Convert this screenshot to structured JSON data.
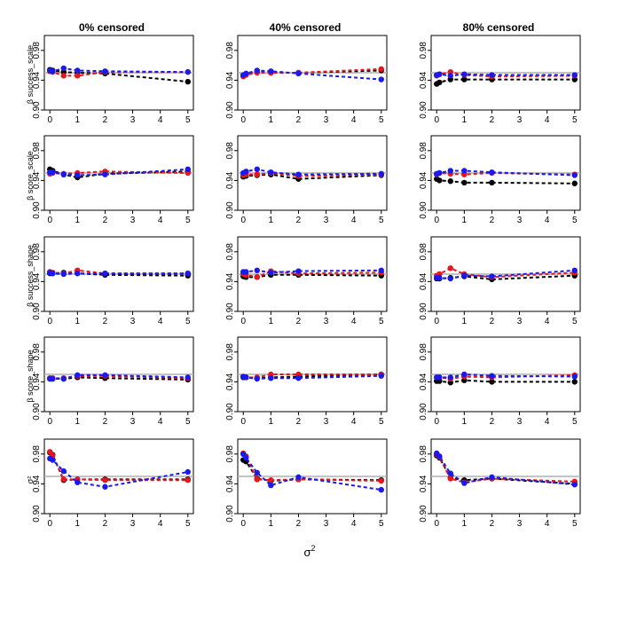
{
  "figure": {
    "column_titles": [
      "0% censored",
      "40% censored",
      "80% censored"
    ],
    "row_labels": [
      "β success_scale",
      "β score_scale",
      "β success_shape",
      "β score_shape",
      "σ²"
    ],
    "xlabel_base": "σ",
    "xlabel_sup": "2"
  },
  "chart_data": {
    "type": "line",
    "layout": "5x3 small multiples",
    "x": [
      0,
      0.1,
      0.5,
      1,
      2,
      5
    ],
    "xticks": [
      0,
      1,
      2,
      3,
      4,
      5
    ],
    "xlim": [
      -0.2,
      5.2
    ],
    "ylim": [
      0.9,
      1.0
    ],
    "yticks": [
      0.9,
      0.94,
      0.98
    ],
    "ytick_labels": [
      "0.90",
      "0.94",
      "0.98"
    ],
    "reference_line": 0.95,
    "reference_color": "#b0b0b0",
    "series_styles": [
      {
        "name": "black",
        "color": "#000000"
      },
      {
        "name": "red",
        "color": "#e8141e"
      },
      {
        "name": "blue",
        "color": "#1a1aee"
      }
    ],
    "panels": [
      {
        "row": "β success_scale",
        "column": "0% censored",
        "series": [
          {
            "name": "black",
            "values": [
              0.954,
              0.953,
              0.951,
              0.95,
              0.949,
              0.938
            ]
          },
          {
            "name": "red",
            "values": [
              0.952,
              0.951,
              0.946,
              0.946,
              0.951,
              0.951
            ]
          },
          {
            "name": "blue",
            "values": [
              0.953,
              0.952,
              0.956,
              0.953,
              0.952,
              0.951
            ]
          }
        ]
      },
      {
        "row": "β success_scale",
        "column": "40% censored",
        "series": [
          {
            "name": "black",
            "values": [
              0.946,
              0.948,
              0.951,
              0.95,
              0.95,
              0.953
            ]
          },
          {
            "name": "red",
            "values": [
              0.945,
              0.947,
              0.95,
              0.95,
              0.95,
              0.955
            ]
          },
          {
            "name": "blue",
            "values": [
              0.947,
              0.949,
              0.953,
              0.952,
              0.949,
              0.941
            ]
          }
        ]
      },
      {
        "row": "β success_scale",
        "column": "80% censored",
        "series": [
          {
            "name": "black",
            "values": [
              0.935,
              0.937,
              0.941,
              0.941,
              0.941,
              0.941
            ]
          },
          {
            "name": "red",
            "values": [
              0.946,
              0.948,
              0.951,
              0.947,
              0.945,
              0.946
            ]
          },
          {
            "name": "blue",
            "values": [
              0.947,
              0.948,
              0.946,
              0.948,
              0.947,
              0.947
            ]
          }
        ]
      },
      {
        "row": "β score_scale",
        "column": "0% censored",
        "series": [
          {
            "name": "black",
            "values": [
              0.955,
              0.953,
              0.948,
              0.944,
              0.949,
              0.952
            ]
          },
          {
            "name": "red",
            "values": [
              0.949,
              0.95,
              0.949,
              0.95,
              0.952,
              0.95
            ]
          },
          {
            "name": "blue",
            "values": [
              0.951,
              0.951,
              0.948,
              0.947,
              0.948,
              0.955
            ]
          }
        ]
      },
      {
        "row": "β score_scale",
        "column": "40% censored",
        "series": [
          {
            "name": "black",
            "values": [
              0.945,
              0.946,
              0.947,
              0.948,
              0.942,
              0.947
            ]
          },
          {
            "name": "red",
            "values": [
              0.947,
              0.948,
              0.948,
              0.95,
              0.946,
              0.948
            ]
          },
          {
            "name": "blue",
            "values": [
              0.95,
              0.952,
              0.955,
              0.951,
              0.948,
              0.949
            ]
          }
        ]
      },
      {
        "row": "β score_scale",
        "column": "80% censored",
        "series": [
          {
            "name": "black",
            "values": [
              0.942,
              0.94,
              0.939,
              0.937,
              0.937,
              0.936
            ]
          },
          {
            "name": "red",
            "values": [
              0.948,
              0.95,
              0.949,
              0.948,
              0.95,
              0.948
            ]
          },
          {
            "name": "blue",
            "values": [
              0.949,
              0.95,
              0.953,
              0.953,
              0.951,
              0.947
            ]
          }
        ]
      },
      {
        "row": "β success_shape",
        "column": "0% censored",
        "series": [
          {
            "name": "black",
            "values": [
              0.951,
              0.951,
              0.952,
              0.951,
              0.949,
              0.948
            ]
          },
          {
            "name": "red",
            "values": [
              0.953,
              0.952,
              0.951,
              0.955,
              0.951,
              0.951
            ]
          },
          {
            "name": "blue",
            "values": [
              0.952,
              0.951,
              0.95,
              0.951,
              0.951,
              0.951
            ]
          }
        ]
      },
      {
        "row": "β success_shape",
        "column": "40% censored",
        "series": [
          {
            "name": "black",
            "values": [
              0.947,
              0.946,
              0.946,
              0.949,
              0.949,
              0.948
            ]
          },
          {
            "name": "red",
            "values": [
              0.95,
              0.949,
              0.946,
              0.954,
              0.951,
              0.952
            ]
          },
          {
            "name": "blue",
            "values": [
              0.953,
              0.953,
              0.955,
              0.952,
              0.954,
              0.955
            ]
          }
        ]
      },
      {
        "row": "β success_shape",
        "column": "80% censored",
        "series": [
          {
            "name": "black",
            "values": [
              0.944,
              0.944,
              0.945,
              0.947,
              0.943,
              0.948
            ]
          },
          {
            "name": "red",
            "values": [
              0.948,
              0.95,
              0.958,
              0.95,
              0.946,
              0.952
            ]
          },
          {
            "name": "blue",
            "values": [
              0.945,
              0.945,
              0.944,
              0.948,
              0.947,
              0.955
            ]
          }
        ]
      },
      {
        "row": "β score_shape",
        "column": "0% censored",
        "series": [
          {
            "name": "black",
            "values": [
              0.944,
              0.944,
              0.944,
              0.946,
              0.945,
              0.943
            ]
          },
          {
            "name": "red",
            "values": [
              0.945,
              0.945,
              0.945,
              0.948,
              0.948,
              0.945
            ]
          },
          {
            "name": "blue",
            "values": [
              0.944,
              0.944,
              0.944,
              0.949,
              0.949,
              0.946
            ]
          }
        ]
      },
      {
        "row": "β score_shape",
        "column": "40% censored",
        "series": [
          {
            "name": "black",
            "values": [
              0.946,
              0.946,
              0.945,
              0.946,
              0.947,
              0.95
            ]
          },
          {
            "name": "red",
            "values": [
              0.947,
              0.946,
              0.946,
              0.95,
              0.95,
              0.95
            ]
          },
          {
            "name": "blue",
            "values": [
              0.947,
              0.946,
              0.944,
              0.945,
              0.945,
              0.948
            ]
          }
        ]
      },
      {
        "row": "β score_shape",
        "column": "80% censored",
        "series": [
          {
            "name": "black",
            "values": [
              0.941,
              0.941,
              0.939,
              0.942,
              0.94,
              0.94
            ]
          },
          {
            "name": "red",
            "values": [
              0.946,
              0.946,
              0.944,
              0.947,
              0.946,
              0.949
            ]
          },
          {
            "name": "blue",
            "values": [
              0.946,
              0.946,
              0.946,
              0.95,
              0.948,
              0.947
            ]
          }
        ]
      },
      {
        "row": "σ²",
        "column": "0% censored",
        "series": [
          {
            "name": "black",
            "values": [
              0.982,
              0.979,
              0.945,
              0.946,
              0.946,
              0.946
            ]
          },
          {
            "name": "red",
            "values": [
              0.983,
              0.978,
              0.946,
              0.946,
              0.945,
              0.945
            ]
          },
          {
            "name": "blue",
            "values": [
              0.974,
              0.972,
              0.957,
              0.942,
              0.936,
              0.956
            ]
          }
        ]
      },
      {
        "row": "σ²",
        "column": "40% censored",
        "series": [
          {
            "name": "black",
            "values": [
              0.972,
              0.97,
              0.947,
              0.944,
              0.946,
              0.945
            ]
          },
          {
            "name": "red",
            "values": [
              0.981,
              0.977,
              0.946,
              0.945,
              0.946,
              0.944
            ]
          },
          {
            "name": "blue",
            "values": [
              0.98,
              0.975,
              0.955,
              0.938,
              0.949,
              0.932
            ]
          }
        ]
      },
      {
        "row": "σ²",
        "column": "80% censored",
        "series": [
          {
            "name": "black",
            "values": [
              0.978,
              0.975,
              0.948,
              0.945,
              0.947,
              0.94
            ]
          },
          {
            "name": "red",
            "values": [
              0.98,
              0.976,
              0.947,
              0.942,
              0.947,
              0.943
            ]
          },
          {
            "name": "blue",
            "values": [
              0.981,
              0.977,
              0.954,
              0.941,
              0.949,
              0.939
            ]
          }
        ]
      }
    ]
  }
}
